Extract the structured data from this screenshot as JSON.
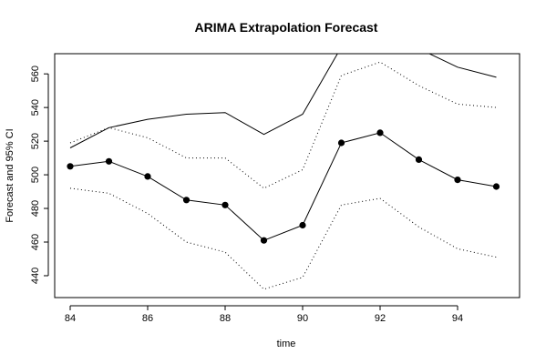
{
  "chart_data": {
    "type": "line",
    "title": "ARIMA Extrapolation Forecast",
    "xlabel": "time",
    "ylabel": "Forecast and 95% CI",
    "xlim": [
      83.6,
      95.6
    ],
    "ylim": [
      427,
      572
    ],
    "x_ticks": [
      84,
      86,
      88,
      90,
      92,
      94
    ],
    "y_ticks": [
      440,
      460,
      480,
      500,
      520,
      540,
      560
    ],
    "grid": false,
    "legend": "none",
    "x": [
      84,
      85,
      86,
      87,
      88,
      89,
      90,
      91,
      92,
      93,
      94,
      95
    ],
    "series": [
      {
        "role": "actual",
        "style": "solid",
        "values": [
          516,
          528,
          533,
          536,
          537,
          524,
          536,
          576,
          580,
          575,
          564,
          558
        ]
      },
      {
        "role": "forecast",
        "style": "solid-with-points",
        "values": [
          505,
          508,
          499,
          485,
          482,
          461,
          470,
          519,
          525,
          509,
          497,
          493
        ]
      },
      {
        "role": "upper-95",
        "style": "dotted",
        "values": [
          519,
          528,
          522,
          510,
          510,
          492,
          503,
          559,
          567,
          553,
          542,
          540
        ]
      },
      {
        "role": "lower-95",
        "style": "dotted",
        "values": [
          492,
          489,
          477,
          460,
          454,
          432,
          439,
          482,
          486,
          469,
          456,
          451
        ]
      }
    ]
  }
}
